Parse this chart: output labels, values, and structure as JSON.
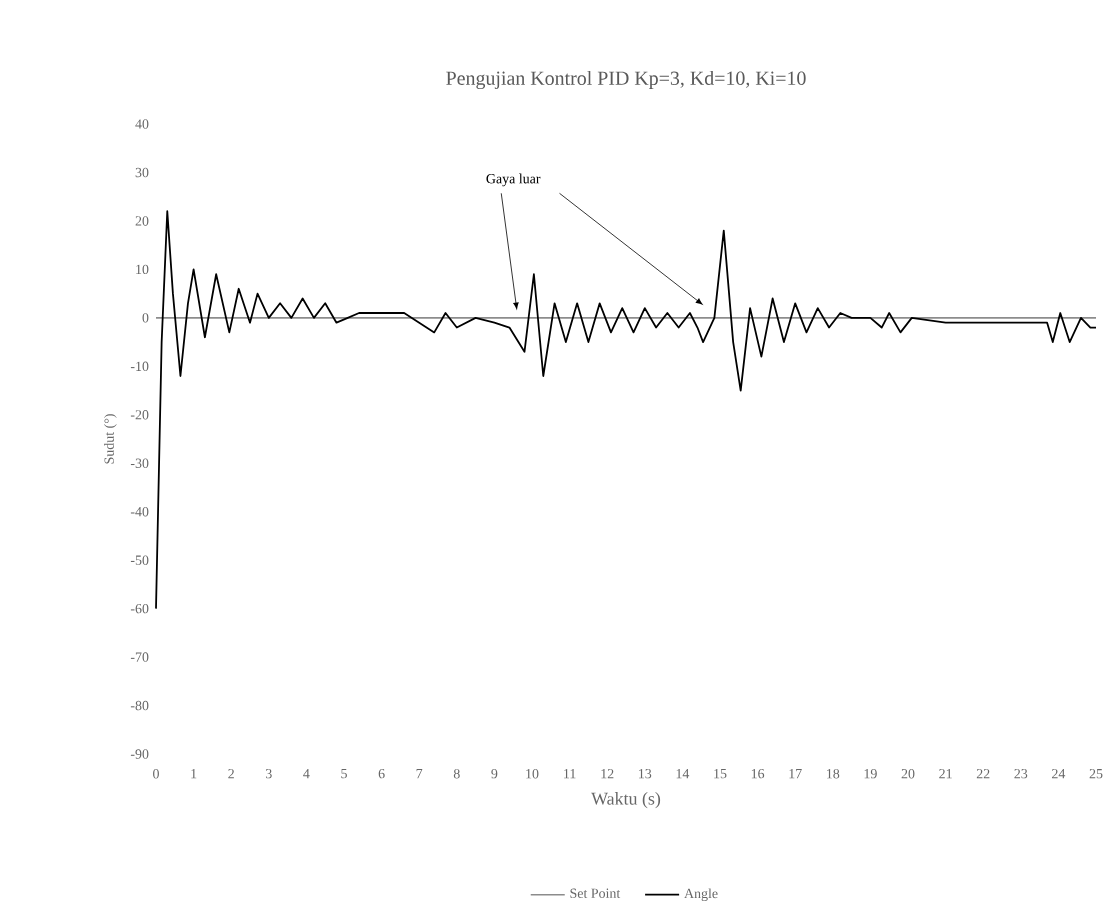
{
  "chart_data": {
    "type": "line",
    "title": "Pengujian Kontrol PID Kp=3, Kd=10, Ki=10",
    "xlabel": "Waktu (s)",
    "ylabel": "Sudut (°)",
    "xlim": [
      0,
      25
    ],
    "xticks": [
      0,
      1,
      2,
      3,
      4,
      5,
      6,
      7,
      8,
      9,
      10,
      11,
      12,
      13,
      14,
      15,
      16,
      17,
      18,
      19,
      20,
      21,
      22,
      23,
      24,
      25
    ],
    "ylim": [
      -90,
      40
    ],
    "yticks": [
      -90,
      -80,
      -70,
      -60,
      -50,
      -40,
      -30,
      -20,
      -10,
      0,
      10,
      20,
      30,
      40
    ],
    "annotations": [
      {
        "text": "Gaya luar",
        "x": 9.6,
        "y": 1.5
      }
    ],
    "legend": "bottom",
    "marker": "none",
    "line_style": "solid",
    "series": [
      {
        "name": "Set Point",
        "color": "#8c8c8c",
        "x": [
          0,
          25
        ],
        "values": [
          0,
          0
        ]
      },
      {
        "name": "Angle",
        "color": "#000000",
        "x": [
          0,
          0.15,
          0.3,
          0.45,
          0.65,
          0.85,
          1.0,
          1.3,
          1.6,
          1.95,
          2.2,
          2.5,
          2.7,
          3.0,
          3.3,
          3.6,
          3.9,
          4.2,
          4.5,
          4.8,
          5.1,
          5.4,
          6.0,
          6.6,
          7.0,
          7.4,
          7.7,
          8.0,
          8.5,
          9.0,
          9.4,
          9.8,
          10.05,
          10.3,
          10.6,
          10.9,
          11.2,
          11.5,
          11.8,
          12.1,
          12.4,
          12.7,
          13.0,
          13.3,
          13.6,
          13.9,
          14.2,
          14.4,
          14.55,
          14.85,
          15.1,
          15.35,
          15.55,
          15.8,
          16.1,
          16.4,
          16.7,
          17.0,
          17.3,
          17.6,
          17.9,
          18.2,
          18.5,
          19.0,
          19.3,
          19.5,
          19.8,
          20.1,
          21.0,
          22.0,
          23.0,
          23.7,
          23.85,
          24.05,
          24.3,
          24.6,
          24.85,
          25.0
        ],
        "values": [
          -60,
          -5,
          22,
          5,
          -12,
          3,
          10,
          -4,
          9,
          -3,
          6,
          -1,
          5,
          0,
          3,
          0,
          4,
          0,
          3,
          -1,
          0,
          1,
          1,
          1,
          -1,
          -3,
          1,
          -2,
          0,
          -1,
          -2,
          -7,
          9,
          -12,
          3,
          -5,
          3,
          -5,
          3,
          -3,
          2,
          -3,
          2,
          -2,
          1,
          -2,
          1,
          -2,
          -5,
          0,
          18,
          -5,
          -15,
          2,
          -8,
          4,
          -5,
          3,
          -3,
          2,
          -2,
          1,
          0,
          0,
          -2,
          1,
          -3,
          0,
          -1,
          -1,
          -1,
          -1,
          -5,
          1,
          -5,
          0,
          -2,
          -2
        ]
      }
    ]
  }
}
